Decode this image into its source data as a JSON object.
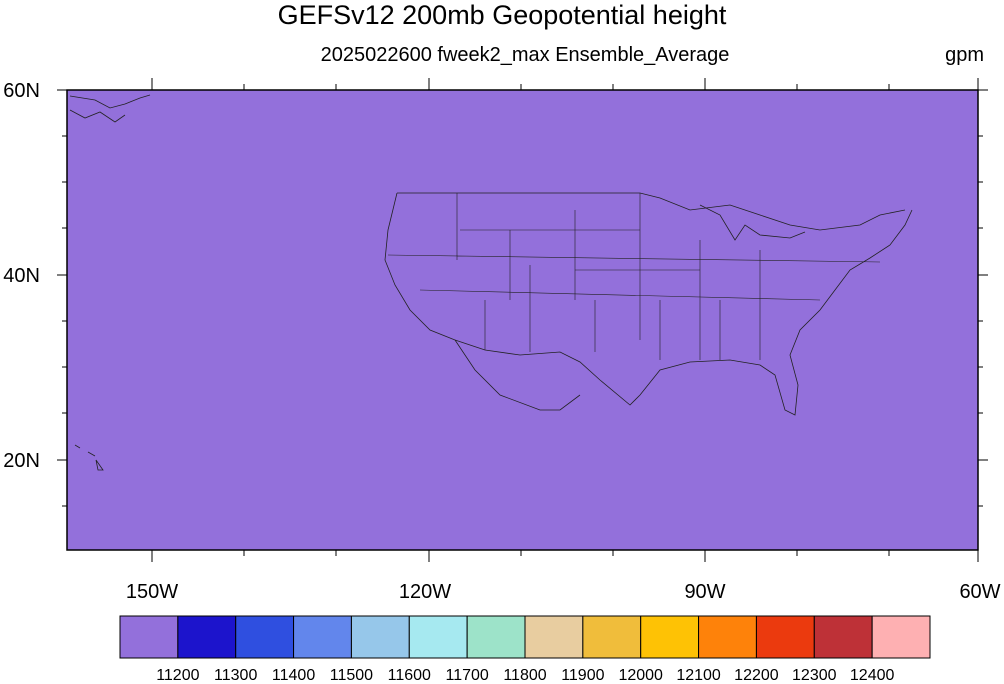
{
  "title": "GEFSv12 200mb Geopotential height",
  "subtitle": "2025022600 fweek2_max Ensemble_Average",
  "units": "gpm",
  "lat_labels": [
    "60N",
    "40N",
    "20N"
  ],
  "lon_labels": [
    "150W",
    "120W",
    "90W",
    "60W"
  ],
  "colorbar": {
    "colors": [
      "#9370db",
      "#1c14cc",
      "#2f4fe0",
      "#6286ec",
      "#96c7ea",
      "#a6e9f0",
      "#9de3c9",
      "#e8cda0",
      "#f0bd3b",
      "#fec205",
      "#fe820a",
      "#eb3a0e",
      "#be3137",
      "#feb0b2"
    ],
    "labels": [
      "11200",
      "11300",
      "11400",
      "11500",
      "11600",
      "11700",
      "11800",
      "11900",
      "12000",
      "12100",
      "12200",
      "12300",
      "12400"
    ]
  },
  "map": {
    "lat_range": [
      10,
      60
    ],
    "lon_range": [
      -160,
      -60
    ],
    "bands": [
      {
        "color": "#feb0b2",
        "level": ">12400"
      },
      {
        "color": "#be3137",
        "level": "12300-12400"
      },
      {
        "color": "#eb3a0e",
        "level": "12200-12300"
      },
      {
        "color": "#fe820a",
        "level": "12100-12200"
      },
      {
        "color": "#fec205",
        "level": "12000-12100"
      },
      {
        "color": "#f0bd3b",
        "level": "11900-12000"
      },
      {
        "color": "#e8cda0",
        "level": "11800-11900"
      },
      {
        "color": "#9de3c9",
        "level": "11700-11800"
      },
      {
        "color": "#a6e9f0",
        "level": "11600-11700"
      },
      {
        "color": "#96c7ea",
        "level": "11500-11600"
      },
      {
        "color": "#6286ec",
        "level": "11400-11500"
      },
      {
        "color": "#2f4fe0",
        "level": "11300-11400"
      },
      {
        "color": "#1c14cc",
        "level": "11200-11300"
      },
      {
        "color": "#9370db",
        "level": "<11200"
      }
    ]
  }
}
